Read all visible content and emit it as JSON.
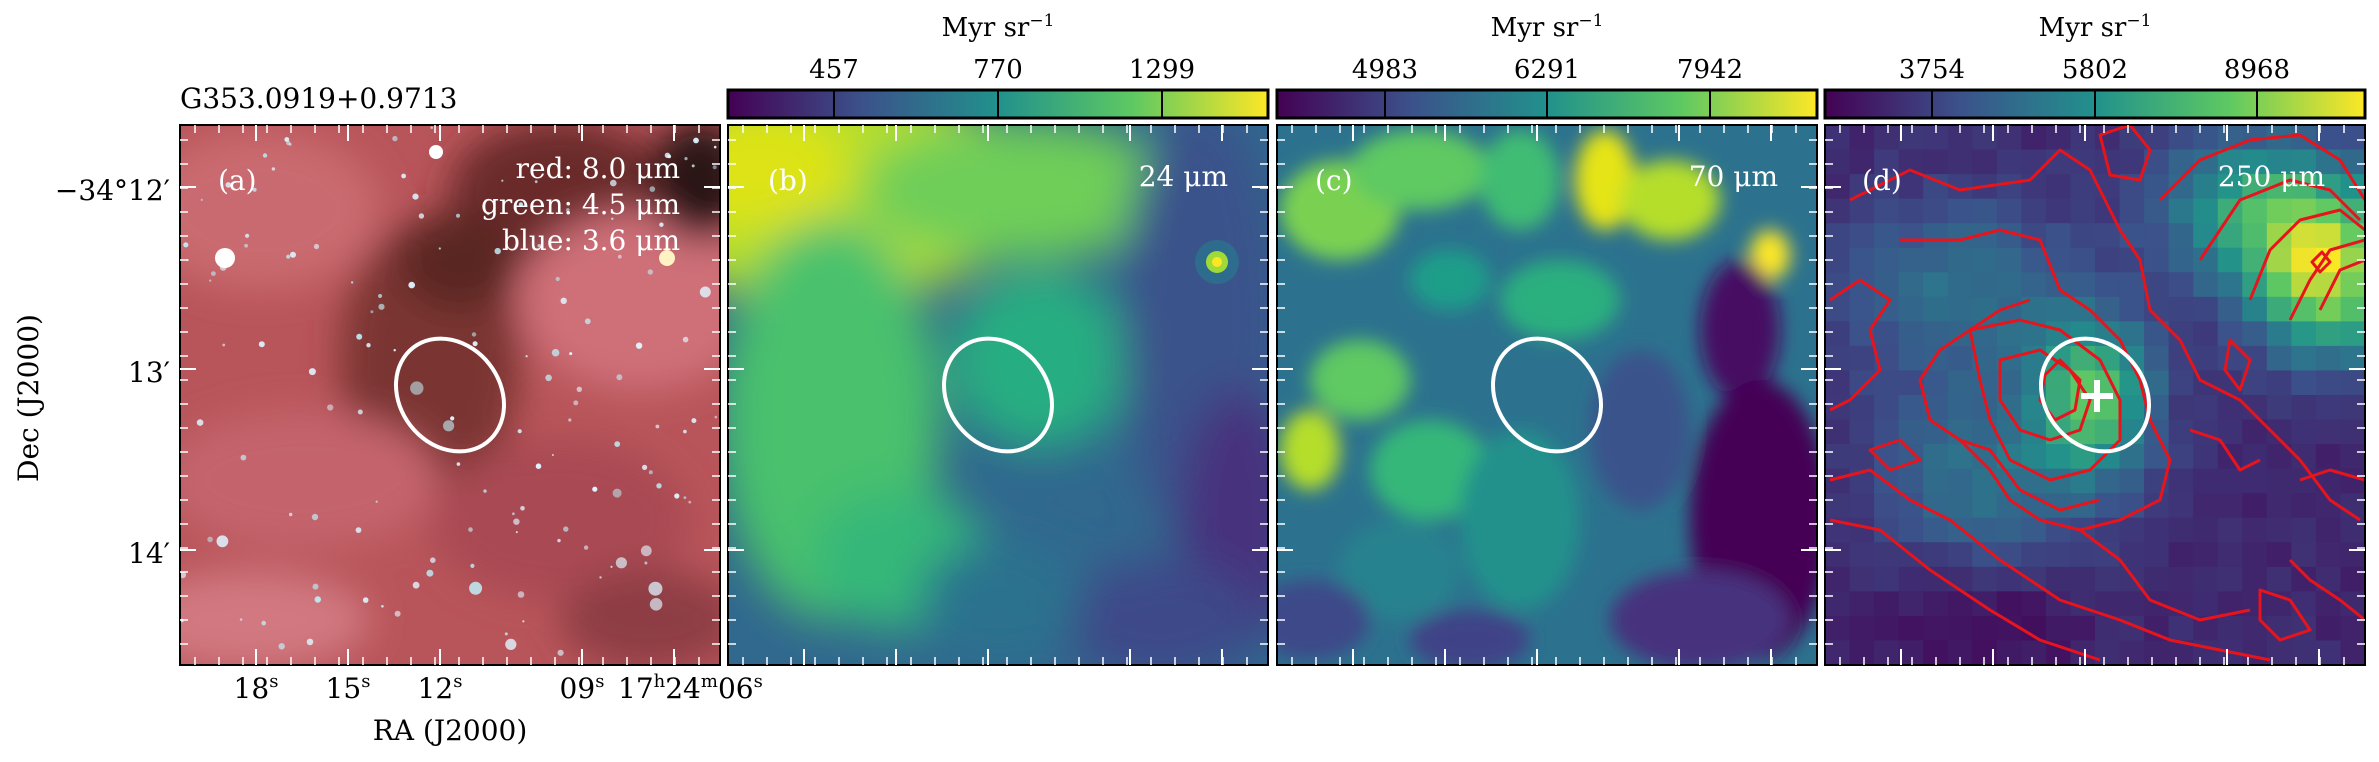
{
  "figure": {
    "source_name": "G353.0919+0.9713",
    "ylabel": "Dec (J2000)",
    "xlabel": "RA (J2000)",
    "dec_ticks": [
      "−34°12′",
      "13′",
      "14′"
    ],
    "ra_ticks": [
      {
        "v": "18",
        "u": "s"
      },
      {
        "v": "15",
        "u": "s"
      },
      {
        "v": "12",
        "u": "s"
      },
      {
        "v": "09",
        "u": "s"
      },
      {
        "v": "17",
        "u": "h",
        "v2": "24",
        "u2": "m",
        "v3": "06",
        "u3": "s"
      }
    ]
  },
  "panels": [
    {
      "letter": "(a)",
      "band_lines": [
        "red: 8.0 μm",
        "green: 4.5 μm",
        "blue: 3.6 μm"
      ],
      "colorbar": null
    },
    {
      "letter": "(b)",
      "band": "24 μm",
      "colorbar": {
        "unit": "Myr sr",
        "exp": "−1",
        "ticks": [
          "457",
          "770",
          "1299"
        ]
      }
    },
    {
      "letter": "(c)",
      "band": "70 μm",
      "colorbar": {
        "unit": "Myr sr",
        "exp": "−1",
        "ticks": [
          "4983",
          "6291",
          "7942"
        ]
      }
    },
    {
      "letter": "(d)",
      "band": "250 μm",
      "colorbar": {
        "unit": "Myr sr",
        "exp": "−1",
        "ticks": [
          "3754",
          "5802",
          "8968"
        ]
      }
    }
  ],
  "colors": {
    "viridis": [
      "#440154",
      "#3b528b",
      "#21918c",
      "#5ec962",
      "#fde725"
    ],
    "contour": "#e8141c",
    "ellipse": "#ffffff"
  }
}
